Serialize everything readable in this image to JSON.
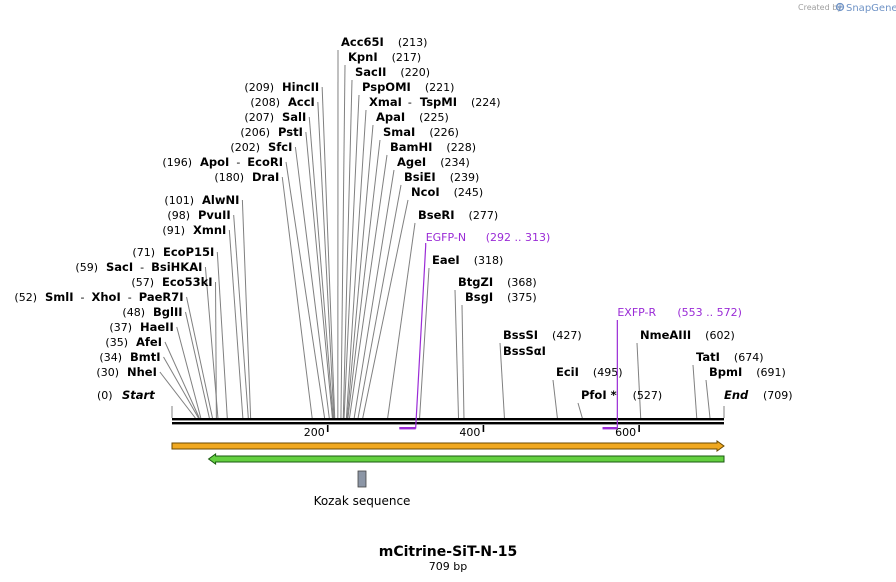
{
  "header": {
    "credit": "Created by",
    "brand": "SnapGene"
  },
  "map": {
    "name": "mCitrine-SiT-N-15",
    "length_label": "709 bp",
    "length": 709,
    "ticks": [
      "200",
      "400",
      "600"
    ],
    "start_label": "Start",
    "start_pos": "(0)",
    "end_label": "End",
    "end_pos": "(709)"
  },
  "sites": [
    {
      "name": "NheI",
      "pos": "(30)"
    },
    {
      "name": "BmtI",
      "pos": "(34)"
    },
    {
      "name": "AfeI",
      "pos": "(35)"
    },
    {
      "name": "HaeII",
      "pos": "(37)"
    },
    {
      "name": "BglII",
      "pos": "(48)"
    },
    {
      "name": "SmlI",
      "pos": "(52)",
      "sep1": "-",
      "name2": "XhoI",
      "sep2": "-",
      "name3": "PaeR7I"
    },
    {
      "name": "Eco53kI",
      "pos": "(57)"
    },
    {
      "name": "SacI",
      "pos": "(59)",
      "sep1": "-",
      "name2": "BsiHKAI"
    },
    {
      "name": "EcoP15I",
      "pos": "(71)"
    },
    {
      "name": "XmnI",
      "pos": "(91)"
    },
    {
      "name": "PvuII",
      "pos": "(98)"
    },
    {
      "name": "AlwNI",
      "pos": "(101)"
    },
    {
      "name": "DraI",
      "pos": "(180)"
    },
    {
      "name": "ApoI",
      "pos": "(196)",
      "sep1": "-",
      "name2": "EcoRI"
    },
    {
      "name": "SfcI",
      "pos": "(202)"
    },
    {
      "name": "PstI",
      "pos": "(206)"
    },
    {
      "name": "SalI",
      "pos": "(207)"
    },
    {
      "name": "AccI",
      "pos": "(208)"
    },
    {
      "name": "HincII",
      "pos": "(209)"
    },
    {
      "name": "Acc65I",
      "pos": "(213)"
    },
    {
      "name": "KpnI",
      "pos": "(217)"
    },
    {
      "name": "SacII",
      "pos": "(220)"
    },
    {
      "name": "PspOMI",
      "pos": "(221)"
    },
    {
      "name": "XmaI",
      "pos": "(224)",
      "sep1": "-",
      "name2": "TspMI"
    },
    {
      "name": "ApaI",
      "pos": "(225)"
    },
    {
      "name": "SmaI",
      "pos": "(226)"
    },
    {
      "name": "BamHI",
      "pos": "(228)"
    },
    {
      "name": "AgeI",
      "pos": "(234)"
    },
    {
      "name": "BsiEI",
      "pos": "(239)"
    },
    {
      "name": "NcoI",
      "pos": "(245)"
    },
    {
      "name": "BseRI",
      "pos": "(277)"
    },
    {
      "name": "EaeI",
      "pos": "(318)"
    },
    {
      "name": "BtgZI",
      "pos": "(368)"
    },
    {
      "name": "BsgI",
      "pos": "(375)"
    },
    {
      "name": "BssSI",
      "pos": "(427)",
      "name2": "BssSαI"
    },
    {
      "name": "EciI",
      "pos": "(495)"
    },
    {
      "name": "PfoI",
      "pos": "(527)",
      "mark": "*"
    },
    {
      "name": "NmeAIII",
      "pos": "(602)"
    },
    {
      "name": "TatI",
      "pos": "(674)"
    },
    {
      "name": "BpmI",
      "pos": "(691)"
    }
  ],
  "primers": [
    {
      "name": "EGFP-N",
      "range": "(292 .. 313)",
      "start": 292,
      "end": 313
    },
    {
      "name": "EXFP-R",
      "range": "(553 .. 572)",
      "start": 553,
      "end": 572
    }
  ],
  "features": [
    {
      "name": "Kozak sequence",
      "start": 236,
      "end": 246
    }
  ],
  "colors": {
    "primer": "#9a2bd6",
    "orange_arrow": "#f0a820",
    "orange_border": "#6b4a00",
    "green_arrow": "#64d040",
    "green_border": "#1a5a10",
    "feature": "#8c96a6",
    "leader": "#808080",
    "backbone": "#000000"
  },
  "arrows": [
    {
      "direction": "forward",
      "start": 0,
      "end": 709
    },
    {
      "direction": "reverse",
      "start": 47,
      "end": 709
    }
  ]
}
